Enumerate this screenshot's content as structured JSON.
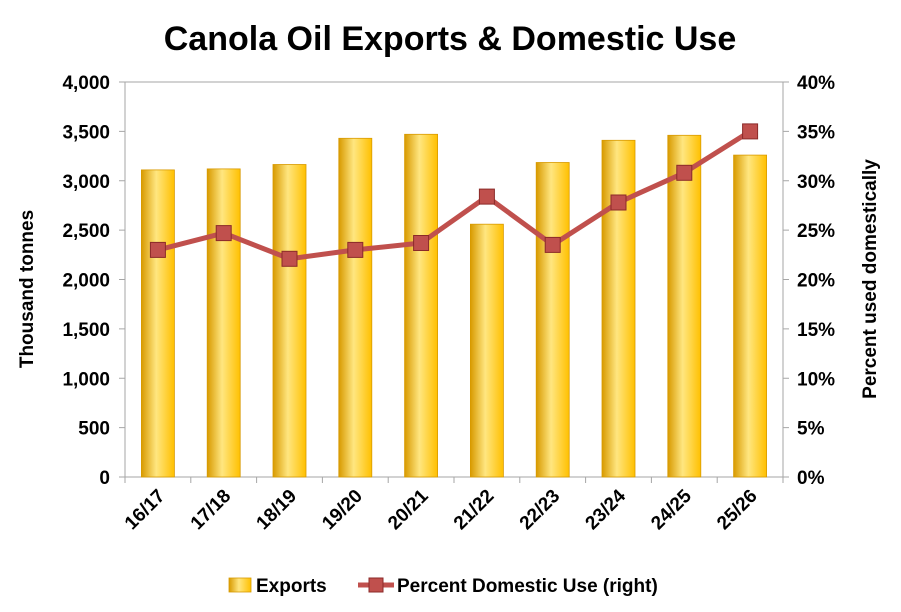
{
  "chart_data": {
    "type": "bar",
    "title": "Canola Oil Exports & Domestic Use",
    "categories": [
      "16/17",
      "17/18",
      "18/19",
      "19/20",
      "20/21",
      "21/22",
      "22/23",
      "23/24",
      "24/25",
      "25/26"
    ],
    "series": [
      {
        "name": "Exports",
        "type": "bar",
        "axis": "left",
        "values": [
          3110,
          3120,
          3165,
          3430,
          3470,
          2560,
          3185,
          3410,
          3460,
          3260
        ]
      },
      {
        "name": "Percent Domestic Use (right)",
        "type": "line",
        "axis": "right",
        "values": [
          23.0,
          24.7,
          22.1,
          23.0,
          23.7,
          28.4,
          23.5,
          27.8,
          30.8,
          35.0
        ]
      }
    ],
    "ylabel": "Thousand tonnes",
    "ylabel_right": "Percent used domestically",
    "ylim": [
      0,
      4000
    ],
    "ylim_right": [
      0,
      40
    ],
    "yticks": [
      "0",
      "500",
      "1,000",
      "1,500",
      "2,000",
      "2,500",
      "3,000",
      "3,500",
      "4,000"
    ],
    "yticks_right": [
      "0%",
      "5%",
      "10%",
      "15%",
      "20%",
      "25%",
      "30%",
      "35%",
      "40%"
    ],
    "grid": false,
    "legend": "bottom",
    "colors": {
      "bar": "#ffc000",
      "bar_light": "#ffe680",
      "bar_dark": "#d89a00",
      "line": "#c0504d",
      "marker": "#c0504d",
      "marker_edge": "#8b2a28",
      "axis": "#a6a6a6"
    }
  }
}
